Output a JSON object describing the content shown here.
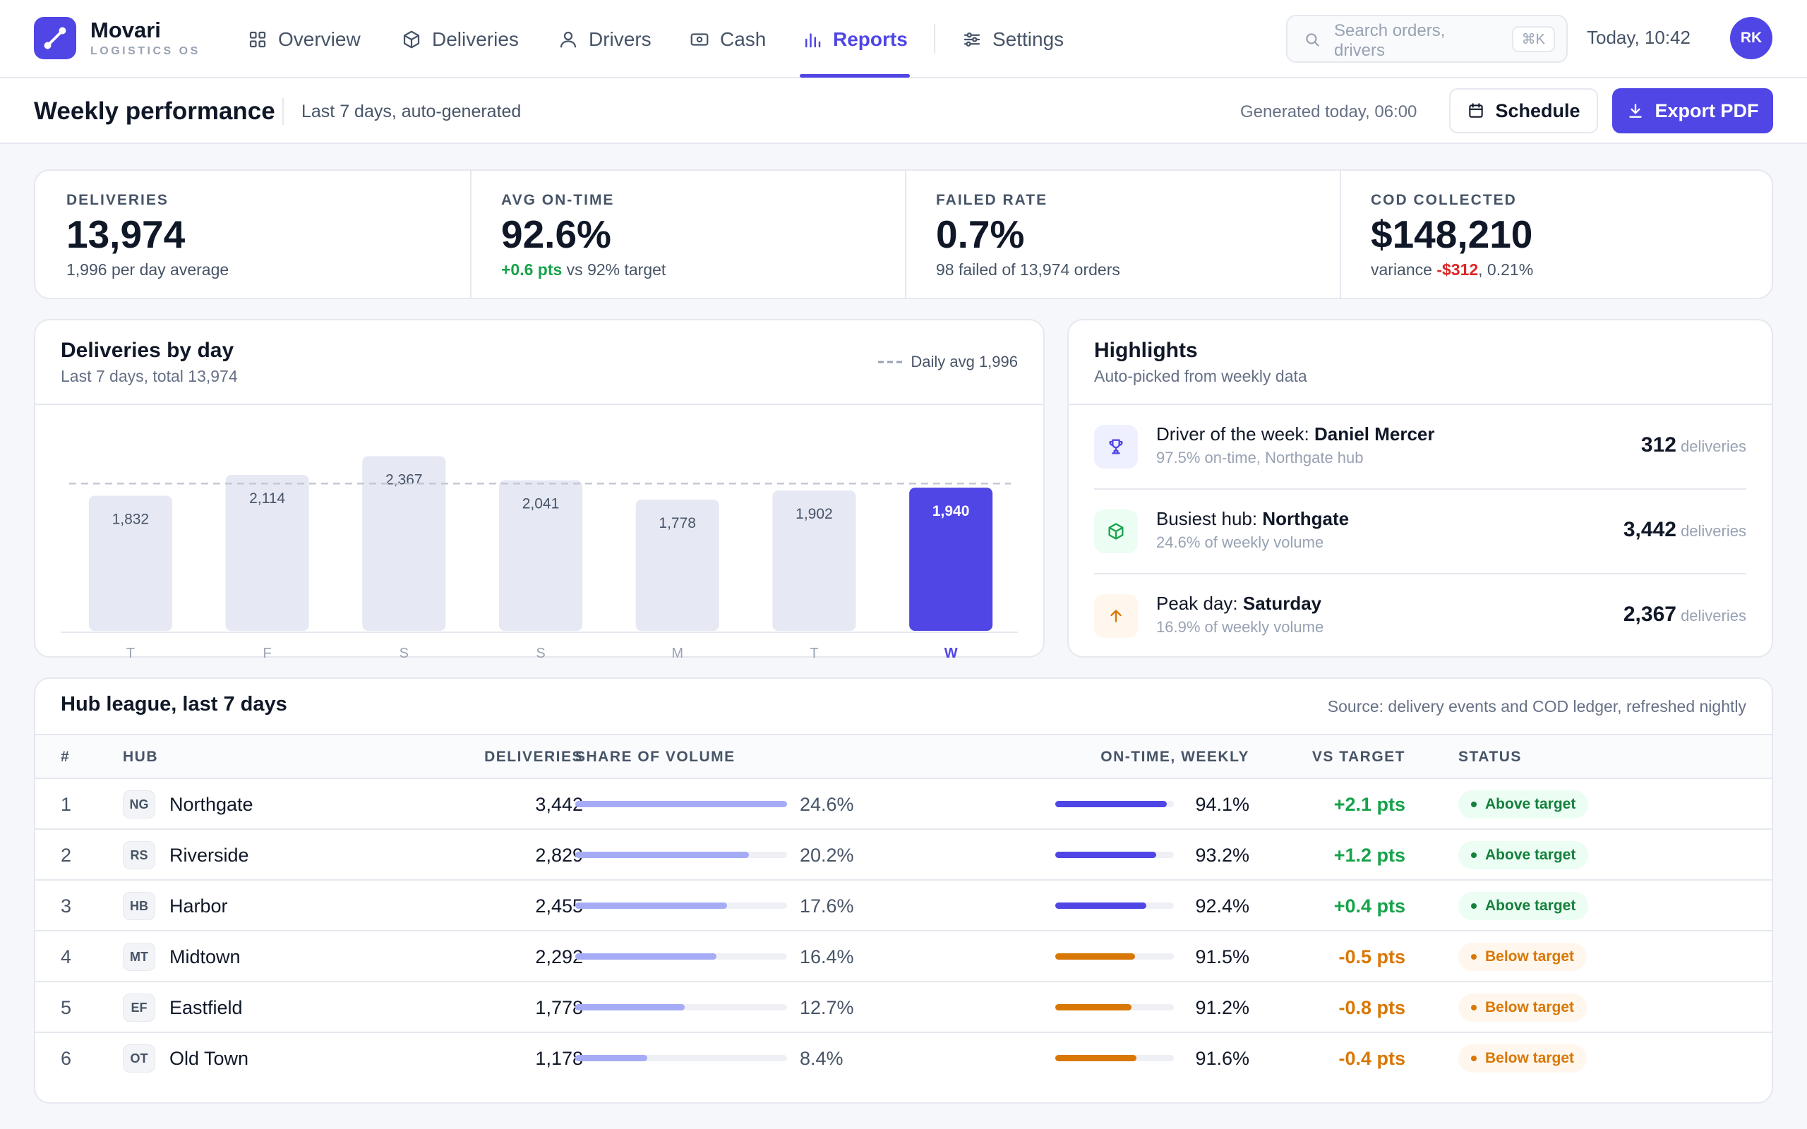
{
  "brand": {
    "name": "Movari",
    "sub": "LOGISTICS OS"
  },
  "nav": [
    {
      "label": "Overview",
      "icon": "grid-icon"
    },
    {
      "label": "Deliveries",
      "icon": "box-icon"
    },
    {
      "label": "Drivers",
      "icon": "user-icon"
    },
    {
      "label": "Cash",
      "icon": "banknote-icon"
    },
    {
      "label": "Reports",
      "icon": "bar-chart-icon",
      "active": true
    },
    {
      "label": "Settings",
      "icon": "sliders-icon"
    }
  ],
  "search": {
    "placeholder": "Search orders, drivers",
    "shortcut": "⌘K"
  },
  "clock": "Today, 10:42",
  "user": {
    "initials": "RK"
  },
  "page": {
    "title": "Weekly performance",
    "subtitle": "Last 7 days, auto-generated",
    "generated": "Generated today, 06:00",
    "schedule_label": "Schedule",
    "export_label": "Export PDF"
  },
  "kpis": [
    {
      "label": "DELIVERIES",
      "value": "13,974",
      "sub": "1,996 per day average"
    },
    {
      "label": "AVG ON-TIME",
      "value": "92.6%",
      "delta": "+0.6 pts",
      "sub": " vs 92% target"
    },
    {
      "label": "FAILED RATE",
      "value": "0.7%",
      "sub": "98 failed of 13,974 orders"
    },
    {
      "label": "COD COLLECTED",
      "value": "$148,210",
      "sub_pre": "variance ",
      "delta": "-$312",
      "sub": ", 0.21%"
    }
  ],
  "chart_card": {
    "title": "Deliveries by day",
    "subtitle": "Last 7 days, total 13,974",
    "legend": "Daily avg 1,996"
  },
  "chart_data": {
    "type": "bar",
    "categories": [
      "T",
      "F",
      "S",
      "S",
      "M",
      "T",
      "W"
    ],
    "values": [
      1832,
      2114,
      2367,
      2041,
      1778,
      1902,
      1940
    ],
    "value_labels": [
      "1,832",
      "2,114",
      "2,367",
      "2,041",
      "1,778",
      "1,902",
      "1,940"
    ],
    "highlight_index": 6,
    "reference_line": 1996,
    "ylim": [
      0,
      2600
    ],
    "title": "Deliveries by day",
    "xlabel": "",
    "ylabel": "",
    "colors": {
      "bar": "#e6e8f4",
      "highlight": "#4f46e5",
      "avg": "#c4c8d4"
    }
  },
  "highlights": {
    "title": "Highlights",
    "subtitle": "Auto-picked from weekly data",
    "items": [
      {
        "icon": "trophy-icon",
        "title_pre": "Driver of the week: ",
        "title_bold": "Daniel Mercer",
        "sub": "97.5% on-time, Northgate hub",
        "value": "312",
        "unit": " deliveries",
        "bg": "#eef0ff",
        "fg": "#4f46e5"
      },
      {
        "icon": "box-icon",
        "title_pre": "Busiest hub: ",
        "title_bold": "Northgate",
        "sub": "24.6% of weekly volume",
        "value": "3,442",
        "unit": " deliveries",
        "bg": "#ecfdf3",
        "fg": "#16a34a"
      },
      {
        "icon": "arrow-up-icon",
        "title_pre": "Peak day: ",
        "title_bold": "Saturday",
        "sub": "16.9% of weekly volume",
        "value": "2,367",
        "unit": " deliveries",
        "bg": "#fff7ed",
        "fg": "#d97706"
      }
    ]
  },
  "league": {
    "title": "Hub league, last 7 days",
    "source": "Source: delivery events and COD ledger, refreshed nightly",
    "headers": {
      "rank": "#",
      "hub": "HUB",
      "deliveries": "DELIVERIES",
      "share": "SHARE OF VOLUME",
      "ontime": "ON-TIME, WEEKLY",
      "vs": "VS TARGET",
      "status": "STATUS"
    },
    "rows": [
      {
        "rank": "1",
        "code": "NG",
        "hub": "Northgate",
        "deliveries": "3,442",
        "share": "24.6%",
        "share_frac": 0.246,
        "ontime": "94.1%",
        "ontime_frac": 0.941,
        "vs": "+2.1 pts",
        "status": "Above target",
        "above": true
      },
      {
        "rank": "2",
        "code": "RS",
        "hub": "Riverside",
        "deliveries": "2,829",
        "share": "20.2%",
        "share_frac": 0.202,
        "ontime": "93.2%",
        "ontime_frac": 0.932,
        "vs": "+1.2 pts",
        "status": "Above target",
        "above": true
      },
      {
        "rank": "3",
        "code": "HB",
        "hub": "Harbor",
        "deliveries": "2,455",
        "share": "17.6%",
        "share_frac": 0.176,
        "ontime": "92.4%",
        "ontime_frac": 0.924,
        "vs": "+0.4 pts",
        "status": "Above target",
        "above": true
      },
      {
        "rank": "4",
        "code": "MT",
        "hub": "Midtown",
        "deliveries": "2,292",
        "share": "16.4%",
        "share_frac": 0.164,
        "ontime": "91.5%",
        "ontime_frac": 0.915,
        "vs": "-0.5 pts",
        "status": "Below target",
        "above": false
      },
      {
        "rank": "5",
        "code": "EF",
        "hub": "Eastfield",
        "deliveries": "1,778",
        "share": "12.7%",
        "share_frac": 0.127,
        "ontime": "91.2%",
        "ontime_frac": 0.912,
        "vs": "-0.8 pts",
        "status": "Below target",
        "above": false
      },
      {
        "rank": "6",
        "code": "OT",
        "hub": "Old Town",
        "deliveries": "1,178",
        "share": "8.4%",
        "share_frac": 0.084,
        "ontime": "91.6%",
        "ontime_frac": 0.916,
        "vs": "-0.4 pts",
        "status": "Below target",
        "above": false
      }
    ]
  },
  "colors": {
    "accent": "#4f46e5",
    "share_bar": "#a5acf5",
    "good": "#16a34a",
    "warn": "#d97706",
    "bad": "#dc2626"
  }
}
